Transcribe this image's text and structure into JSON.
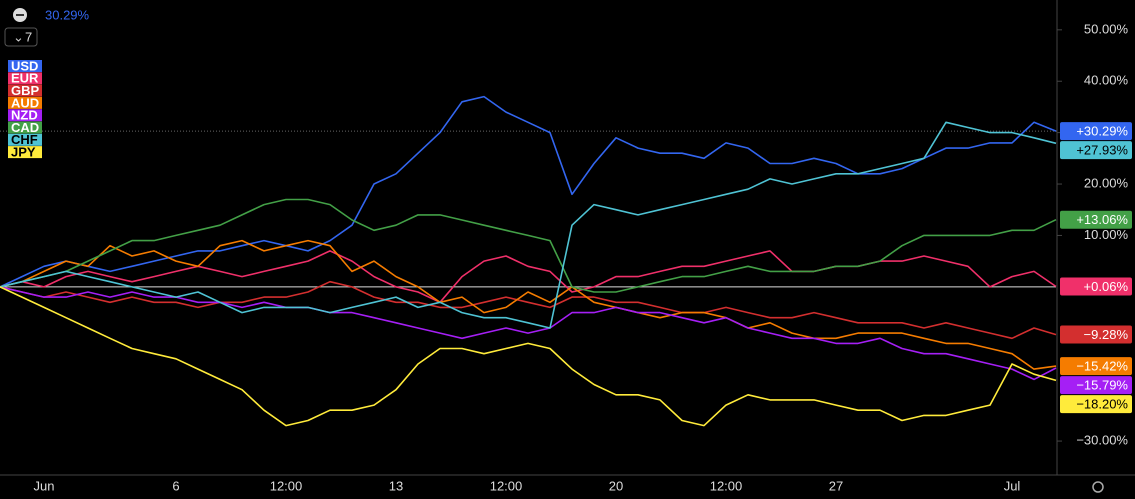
{
  "chart_data": {
    "type": "line",
    "header_value": "30.29%",
    "indicator_count": 7,
    "categories": [
      null,
      null,
      "Jun",
      null,
      null,
      null,
      null,
      null,
      "6",
      null,
      null,
      null,
      null,
      "12:00",
      null,
      null,
      null,
      null,
      "13",
      null,
      null,
      null,
      null,
      "12:00",
      null,
      null,
      null,
      null,
      "20",
      null,
      null,
      null,
      null,
      "12:00",
      null,
      null,
      null,
      null,
      "27",
      null,
      null,
      null,
      null,
      null,
      null,
      null,
      "Jul",
      null,
      null
    ],
    "ylim": [
      -36.6,
      55.8
    ],
    "yticks": [
      {
        "value": 50,
        "label": "50.00%"
      },
      {
        "value": 40,
        "label": "40.00%"
      },
      {
        "value": 30,
        "label": "30.00%"
      },
      {
        "value": 20,
        "label": "20.00%"
      },
      {
        "value": 10,
        "label": "10.00%"
      },
      {
        "value": -30,
        "label": "−30.00%"
      }
    ],
    "reference_line": 0,
    "grid": false,
    "legend": "top-left",
    "series": [
      {
        "name": "USD",
        "color": "#3366f0",
        "end_label": "+30.29%",
        "values": [
          0,
          2,
          4,
          5,
          4,
          3,
          4,
          5,
          6,
          7,
          7,
          8,
          9,
          8,
          7,
          9,
          12,
          20,
          22,
          26,
          30,
          36,
          37,
          34,
          32,
          30,
          18,
          24,
          29,
          27,
          26,
          26,
          25,
          28,
          27,
          24,
          24,
          25,
          24,
          22,
          22,
          23,
          25,
          27,
          27,
          28,
          28,
          32,
          30.29
        ]
      },
      {
        "name": "EUR",
        "color": "#f0306a",
        "end_label": "+0.06%",
        "values": [
          0,
          1,
          0,
          2,
          3,
          2,
          1,
          2,
          3,
          4,
          3,
          2,
          3,
          4,
          5,
          7,
          5,
          2,
          0,
          -1,
          -3,
          2,
          5,
          6,
          4,
          3,
          -1,
          0,
          2,
          2,
          3,
          4,
          4,
          5,
          6,
          7,
          3,
          3,
          4,
          4,
          5,
          5,
          6,
          5,
          4,
          0,
          2,
          3,
          0.06
        ]
      },
      {
        "name": "GBP",
        "color": "#d32f2f",
        "end_label": "−9.28%",
        "values": [
          0,
          -1,
          -2,
          -1,
          -2,
          -3,
          -2,
          -3,
          -3,
          -4,
          -3,
          -3,
          -2,
          -2,
          -1,
          1,
          0,
          -2,
          -3,
          -3,
          -4,
          -4,
          -3,
          -2,
          -3,
          -4,
          -2,
          -2,
          -3,
          -3,
          -4,
          -5,
          -5,
          -4,
          -5,
          -6,
          -6,
          -5,
          -6,
          -7,
          -7,
          -7,
          -8,
          -7,
          -8,
          -9,
          -10,
          -8,
          -9.28
        ]
      },
      {
        "name": "AUD",
        "color": "#f57c00",
        "end_label": "−15.42%",
        "values": [
          0,
          1,
          3,
          5,
          4,
          8,
          6,
          7,
          5,
          4,
          8,
          9,
          7,
          8,
          9,
          8,
          3,
          5,
          2,
          0,
          -3,
          -2,
          -5,
          -4,
          -1,
          -3,
          0,
          -3,
          -4,
          -5,
          -6,
          -5,
          -5,
          -6,
          -8,
          -7,
          -9,
          -10,
          -10,
          -9,
          -9,
          -9,
          -10,
          -11,
          -11,
          -12,
          -13,
          -16,
          -15.42
        ]
      },
      {
        "name": "NZD",
        "color": "#a51ff5",
        "end_label": "−15.79%",
        "values": [
          0,
          -1,
          -2,
          -2,
          -1,
          -2,
          -1,
          -2,
          -2,
          -3,
          -3,
          -4,
          -3,
          -4,
          -4,
          -5,
          -5,
          -6,
          -7,
          -8,
          -9,
          -10,
          -9,
          -8,
          -9,
          -8,
          -5,
          -5,
          -4,
          -5,
          -5,
          -6,
          -7,
          -6,
          -8,
          -9,
          -10,
          -10,
          -11,
          -11,
          -10,
          -12,
          -13,
          -13,
          -14,
          -15,
          -16,
          -18,
          -15.79
        ]
      },
      {
        "name": "CAD",
        "color": "#43a047",
        "end_label": "+13.06%",
        "values": [
          0,
          1,
          2,
          3,
          5,
          7,
          9,
          9,
          10,
          11,
          12,
          14,
          16,
          17,
          17,
          16,
          13,
          11,
          12,
          14,
          14,
          13,
          12,
          11,
          10,
          9,
          0,
          -1,
          -1,
          0,
          1,
          2,
          2,
          3,
          4,
          3,
          3,
          3,
          4,
          4,
          5,
          8,
          10,
          10,
          10,
          10,
          11,
          11,
          13.06
        ]
      },
      {
        "name": "CHF",
        "color": "#4fc3d4",
        "end_label": "+27.93%",
        "values": [
          0,
          1,
          2,
          3,
          2,
          1,
          0,
          -1,
          -2,
          -1,
          -3,
          -5,
          -4,
          -4,
          -4,
          -5,
          -4,
          -3,
          -2,
          -4,
          -3,
          -5,
          -6,
          -6,
          -7,
          -8,
          12,
          16,
          15,
          14,
          15,
          16,
          17,
          18,
          19,
          21,
          20,
          21,
          22,
          22,
          23,
          24,
          25,
          32,
          31,
          30,
          30,
          29,
          27.93
        ]
      },
      {
        "name": "JPY",
        "color": "#ffeb3b",
        "end_label": "−18.20%",
        "values": [
          0,
          -2,
          -4,
          -6,
          -8,
          -10,
          -12,
          -13,
          -14,
          -16,
          -18,
          -20,
          -24,
          -27,
          -26,
          -24,
          -24,
          -23,
          -20,
          -15,
          -12,
          -12,
          -13,
          -12,
          -11,
          -12,
          -16,
          -19,
          -21,
          -21,
          -22,
          -26,
          -27,
          -23,
          -21,
          -22,
          -22,
          -22,
          -23,
          -24,
          -24,
          -26,
          -25,
          -25,
          -24,
          -23,
          -15,
          -17,
          -18.2
        ]
      }
    ]
  }
}
